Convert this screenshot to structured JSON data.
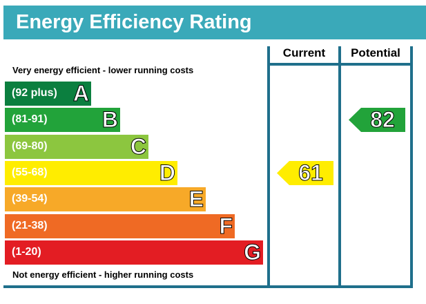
{
  "header": {
    "title": "Energy Efficiency Rating"
  },
  "notes": {
    "top": "Very energy efficient - lower running costs",
    "bottom": "Not energy efficient - higher running costs"
  },
  "columns": {
    "current": "Current",
    "potential": "Potential"
  },
  "chart_data": {
    "type": "bar",
    "bands": [
      {
        "range": "(92 plus)",
        "letter": "A",
        "color": "#0b7f3f"
      },
      {
        "range": "(81-91)",
        "letter": "B",
        "color": "#22a33a"
      },
      {
        "range": "(69-80)",
        "letter": "C",
        "color": "#8cc63f"
      },
      {
        "range": "(55-68)",
        "letter": "D",
        "color": "#ffed00"
      },
      {
        "range": "(39-54)",
        "letter": "E",
        "color": "#f7a928"
      },
      {
        "range": "(21-38)",
        "letter": "F",
        "color": "#ef6a24"
      },
      {
        "range": "(1-20)",
        "letter": "G",
        "color": "#e31d23"
      }
    ],
    "current": {
      "value": "61",
      "band": "D",
      "color": "#ffed00"
    },
    "potential": {
      "value": "82",
      "band": "B",
      "color": "#22a33a"
    }
  }
}
